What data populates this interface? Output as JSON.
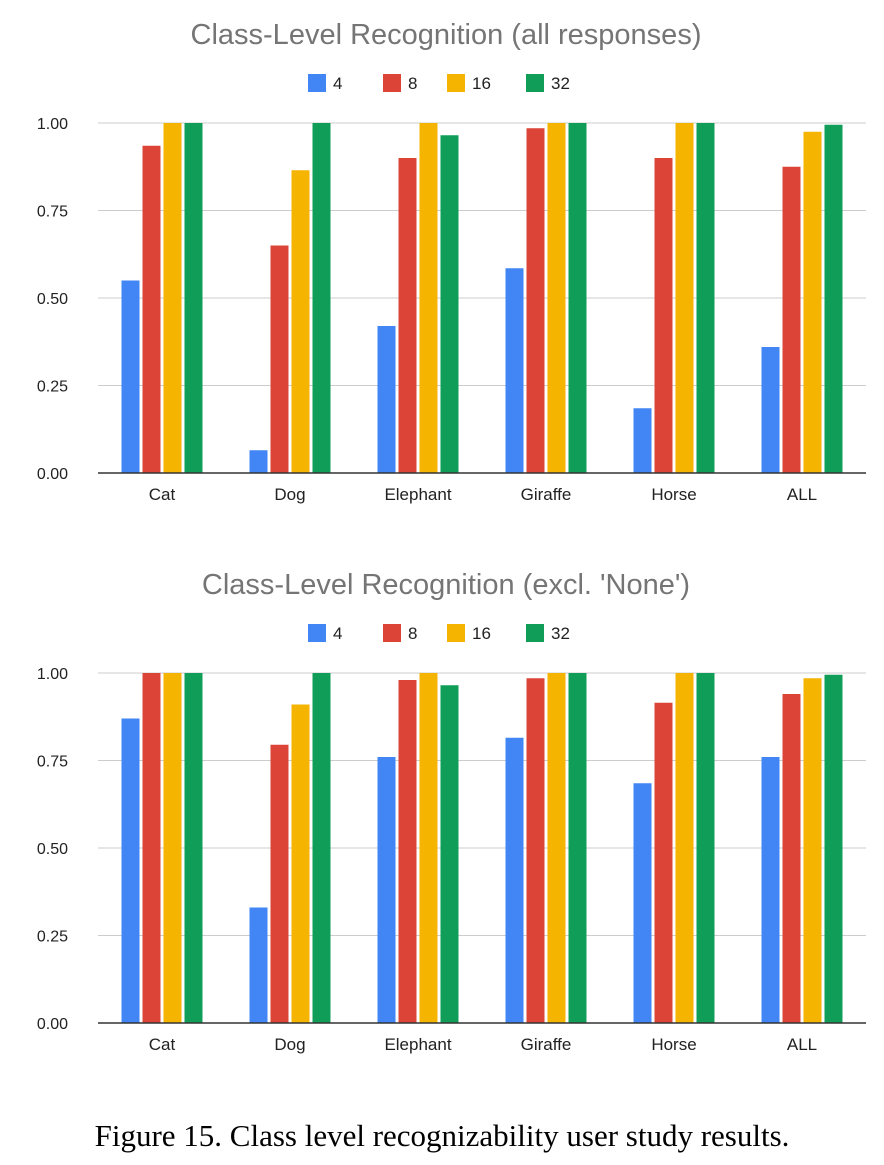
{
  "figure": {
    "caption": "Figure 15. Class level recognizability user study results."
  },
  "chart_data": [
    {
      "type": "bar",
      "title": "Class-Level Recognition (all responses)",
      "categories": [
        "Cat",
        "Dog",
        "Elephant",
        "Giraffe",
        "Horse",
        "ALL"
      ],
      "ylim": [
        0,
        1
      ],
      "yticks": [
        "0.00",
        "0.25",
        "0.50",
        "0.75",
        "1.00"
      ],
      "ytick_values": [
        0,
        0.25,
        0.5,
        0.75,
        1.0
      ],
      "grid": true,
      "legend_position": "top",
      "series": [
        {
          "name": "4",
          "color": "#4285F4",
          "values": [
            0.55,
            0.065,
            0.42,
            0.585,
            0.185,
            0.36
          ]
        },
        {
          "name": "8",
          "color": "#DB4437",
          "values": [
            0.935,
            0.65,
            0.9,
            0.985,
            0.9,
            0.875
          ]
        },
        {
          "name": "16",
          "color": "#F4B400",
          "values": [
            1.0,
            0.865,
            1.0,
            1.0,
            1.0,
            0.975
          ]
        },
        {
          "name": "32",
          "color": "#0F9D58",
          "values": [
            1.0,
            1.0,
            0.965,
            1.0,
            1.0,
            0.995
          ]
        }
      ]
    },
    {
      "type": "bar",
      "title": "Class-Level Recognition (excl. 'None')",
      "categories": [
        "Cat",
        "Dog",
        "Elephant",
        "Giraffe",
        "Horse",
        "ALL"
      ],
      "ylim": [
        0,
        1
      ],
      "yticks": [
        "0.00",
        "0.25",
        "0.50",
        "0.75",
        "1.00"
      ],
      "ytick_values": [
        0,
        0.25,
        0.5,
        0.75,
        1.0
      ],
      "grid": true,
      "legend_position": "top",
      "series": [
        {
          "name": "4",
          "color": "#4285F4",
          "values": [
            0.87,
            0.33,
            0.76,
            0.815,
            0.685,
            0.76
          ]
        },
        {
          "name": "8",
          "color": "#DB4437",
          "values": [
            1.0,
            0.795,
            0.98,
            0.985,
            0.915,
            0.94
          ]
        },
        {
          "name": "16",
          "color": "#F4B400",
          "values": [
            1.0,
            0.91,
            1.0,
            1.0,
            1.0,
            0.985
          ]
        },
        {
          "name": "32",
          "color": "#0F9D58",
          "values": [
            1.0,
            1.0,
            0.965,
            1.0,
            1.0,
            0.995
          ]
        }
      ]
    }
  ]
}
